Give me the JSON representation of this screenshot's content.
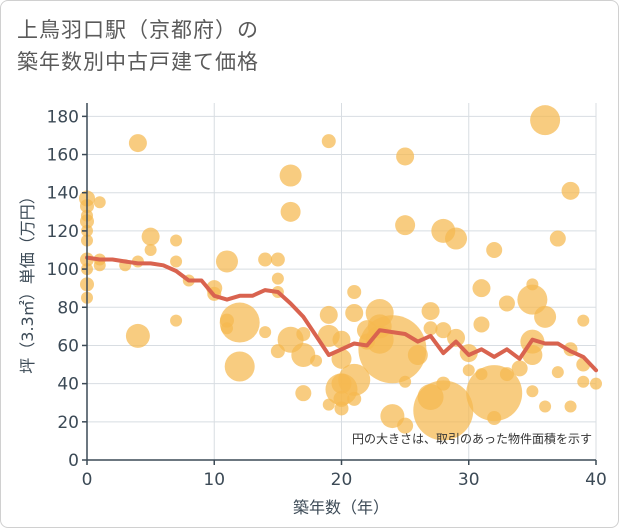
{
  "title": "上鳥羽口駅（京都府）の\n築年数別中古戸建て価格",
  "chart_data": {
    "type": "scatter",
    "xlabel": "築年数（年）",
    "ylabel": "坪（3.3㎡）単価（万円）",
    "xlim": [
      0,
      40
    ],
    "ylim": [
      0,
      187
    ],
    "x_ticks": [
      0,
      10,
      20,
      30,
      40
    ],
    "y_ticks": [
      0,
      20,
      40,
      60,
      80,
      100,
      120,
      140,
      160,
      180
    ],
    "grid": true,
    "annotation": "円の大きさは、取引のあった物件面積を示す",
    "bubble_color": "#f5b94f",
    "line_color": "#d9634f",
    "points": [
      {
        "x": 0,
        "y": 137,
        "s": 8
      },
      {
        "x": 0,
        "y": 133,
        "s": 7
      },
      {
        "x": 0,
        "y": 128,
        "s": 6
      },
      {
        "x": 0,
        "y": 125,
        "s": 7
      },
      {
        "x": 0,
        "y": 120,
        "s": 6
      },
      {
        "x": 0,
        "y": 115,
        "s": 6
      },
      {
        "x": 0,
        "y": 105,
        "s": 7
      },
      {
        "x": 0,
        "y": 100,
        "s": 6
      },
      {
        "x": 0,
        "y": 92,
        "s": 7
      },
      {
        "x": 0,
        "y": 85,
        "s": 6
      },
      {
        "x": 1,
        "y": 135,
        "s": 6
      },
      {
        "x": 1,
        "y": 105,
        "s": 6
      },
      {
        "x": 1,
        "y": 102,
        "s": 6
      },
      {
        "x": 3,
        "y": 102,
        "s": 6
      },
      {
        "x": 4,
        "y": 166,
        "s": 9
      },
      {
        "x": 4,
        "y": 104,
        "s": 6
      },
      {
        "x": 4,
        "y": 65,
        "s": 12
      },
      {
        "x": 5,
        "y": 117,
        "s": 9
      },
      {
        "x": 5,
        "y": 110,
        "s": 6
      },
      {
        "x": 7,
        "y": 115,
        "s": 6
      },
      {
        "x": 7,
        "y": 104,
        "s": 6
      },
      {
        "x": 7,
        "y": 73,
        "s": 6
      },
      {
        "x": 8,
        "y": 94,
        "s": 6
      },
      {
        "x": 10,
        "y": 90,
        "s": 8
      },
      {
        "x": 10,
        "y": 87,
        "s": 7
      },
      {
        "x": 11,
        "y": 104,
        "s": 11
      },
      {
        "x": 11,
        "y": 73,
        "s": 7
      },
      {
        "x": 11,
        "y": 69,
        "s": 6
      },
      {
        "x": 12,
        "y": 72,
        "s": 20
      },
      {
        "x": 12,
        "y": 49,
        "s": 15
      },
      {
        "x": 14,
        "y": 105,
        "s": 7
      },
      {
        "x": 14,
        "y": 67,
        "s": 6
      },
      {
        "x": 15,
        "y": 105,
        "s": 7
      },
      {
        "x": 15,
        "y": 95,
        "s": 6
      },
      {
        "x": 15,
        "y": 88,
        "s": 6
      },
      {
        "x": 15,
        "y": 57,
        "s": 7
      },
      {
        "x": 16,
        "y": 149,
        "s": 11
      },
      {
        "x": 16,
        "y": 130,
        "s": 10
      },
      {
        "x": 16,
        "y": 63,
        "s": 13
      },
      {
        "x": 17,
        "y": 66,
        "s": 7
      },
      {
        "x": 17,
        "y": 55,
        "s": 12
      },
      {
        "x": 17,
        "y": 35,
        "s": 8
      },
      {
        "x": 18,
        "y": 52,
        "s": 6
      },
      {
        "x": 19,
        "y": 167,
        "s": 7
      },
      {
        "x": 19,
        "y": 76,
        "s": 9
      },
      {
        "x": 19,
        "y": 65,
        "s": 11
      },
      {
        "x": 19,
        "y": 29,
        "s": 6
      },
      {
        "x": 20,
        "y": 63,
        "s": 9
      },
      {
        "x": 20,
        "y": 53,
        "s": 10
      },
      {
        "x": 20,
        "y": 40,
        "s": 10
      },
      {
        "x": 20,
        "y": 37,
        "s": 16
      },
      {
        "x": 20,
        "y": 32,
        "s": 8
      },
      {
        "x": 20,
        "y": 27,
        "s": 7
      },
      {
        "x": 21,
        "y": 88,
        "s": 7
      },
      {
        "x": 21,
        "y": 77,
        "s": 9
      },
      {
        "x": 21,
        "y": 42,
        "s": 16
      },
      {
        "x": 21,
        "y": 32,
        "s": 7
      },
      {
        "x": 22,
        "y": 68,
        "s": 10
      },
      {
        "x": 22,
        "y": 62,
        "s": 8
      },
      {
        "x": 23,
        "y": 77,
        "s": 14
      },
      {
        "x": 23,
        "y": 70,
        "s": 12
      },
      {
        "x": 23,
        "y": 63,
        "s": 14
      },
      {
        "x": 24,
        "y": 58,
        "s": 34
      },
      {
        "x": 24,
        "y": 23,
        "s": 12
      },
      {
        "x": 25,
        "y": 159,
        "s": 9
      },
      {
        "x": 25,
        "y": 123,
        "s": 10
      },
      {
        "x": 25,
        "y": 41,
        "s": 6
      },
      {
        "x": 25,
        "y": 18,
        "s": 8
      },
      {
        "x": 26,
        "y": 55,
        "s": 10
      },
      {
        "x": 27,
        "y": 78,
        "s": 9
      },
      {
        "x": 27,
        "y": 69,
        "s": 7
      },
      {
        "x": 27,
        "y": 33,
        "s": 13
      },
      {
        "x": 28,
        "y": 120,
        "s": 12
      },
      {
        "x": 28,
        "y": 68,
        "s": 8
      },
      {
        "x": 28,
        "y": 40,
        "s": 7
      },
      {
        "x": 28,
        "y": 26,
        "s": 30
      },
      {
        "x": 29,
        "y": 116,
        "s": 11
      },
      {
        "x": 29,
        "y": 64,
        "s": 9
      },
      {
        "x": 30,
        "y": 56,
        "s": 9
      },
      {
        "x": 30,
        "y": 47,
        "s": 6
      },
      {
        "x": 31,
        "y": 90,
        "s": 9
      },
      {
        "x": 31,
        "y": 71,
        "s": 8
      },
      {
        "x": 31,
        "y": 45,
        "s": 6
      },
      {
        "x": 32,
        "y": 110,
        "s": 8
      },
      {
        "x": 32,
        "y": 35,
        "s": 28
      },
      {
        "x": 32,
        "y": 22,
        "s": 7
      },
      {
        "x": 33,
        "y": 82,
        "s": 8
      },
      {
        "x": 33,
        "y": 45,
        "s": 7
      },
      {
        "x": 34,
        "y": 48,
        "s": 8
      },
      {
        "x": 35,
        "y": 92,
        "s": 6
      },
      {
        "x": 35,
        "y": 84,
        "s": 15
      },
      {
        "x": 35,
        "y": 62,
        "s": 12
      },
      {
        "x": 35,
        "y": 55,
        "s": 10
      },
      {
        "x": 35,
        "y": 36,
        "s": 6
      },
      {
        "x": 36,
        "y": 178,
        "s": 15
      },
      {
        "x": 36,
        "y": 75,
        "s": 11
      },
      {
        "x": 36,
        "y": 28,
        "s": 6
      },
      {
        "x": 37,
        "y": 116,
        "s": 8
      },
      {
        "x": 37,
        "y": 46,
        "s": 6
      },
      {
        "x": 38,
        "y": 141,
        "s": 9
      },
      {
        "x": 38,
        "y": 58,
        "s": 7
      },
      {
        "x": 38,
        "y": 28,
        "s": 6
      },
      {
        "x": 39,
        "y": 73,
        "s": 6
      },
      {
        "x": 39,
        "y": 50,
        "s": 7
      },
      {
        "x": 39,
        "y": 41,
        "s": 6
      },
      {
        "x": 40,
        "y": 40,
        "s": 6
      }
    ],
    "trend": [
      {
        "x": 0,
        "y": 106
      },
      {
        "x": 1,
        "y": 105
      },
      {
        "x": 2,
        "y": 105
      },
      {
        "x": 3,
        "y": 104
      },
      {
        "x": 4,
        "y": 103
      },
      {
        "x": 5,
        "y": 103
      },
      {
        "x": 6,
        "y": 102
      },
      {
        "x": 7,
        "y": 99
      },
      {
        "x": 8,
        "y": 94
      },
      {
        "x": 9,
        "y": 94
      },
      {
        "x": 10,
        "y": 86
      },
      {
        "x": 11,
        "y": 84
      },
      {
        "x": 12,
        "y": 86
      },
      {
        "x": 13,
        "y": 86
      },
      {
        "x": 14,
        "y": 89
      },
      {
        "x": 15,
        "y": 88
      },
      {
        "x": 16,
        "y": 82
      },
      {
        "x": 17,
        "y": 75
      },
      {
        "x": 18,
        "y": 65
      },
      {
        "x": 19,
        "y": 55
      },
      {
        "x": 20,
        "y": 58
      },
      {
        "x": 21,
        "y": 61
      },
      {
        "x": 22,
        "y": 60
      },
      {
        "x": 23,
        "y": 68
      },
      {
        "x": 24,
        "y": 67
      },
      {
        "x": 25,
        "y": 66
      },
      {
        "x": 26,
        "y": 62
      },
      {
        "x": 27,
        "y": 65
      },
      {
        "x": 28,
        "y": 56
      },
      {
        "x": 29,
        "y": 62
      },
      {
        "x": 30,
        "y": 55
      },
      {
        "x": 31,
        "y": 58
      },
      {
        "x": 32,
        "y": 54
      },
      {
        "x": 33,
        "y": 58
      },
      {
        "x": 34,
        "y": 53
      },
      {
        "x": 35,
        "y": 63
      },
      {
        "x": 36,
        "y": 61
      },
      {
        "x": 37,
        "y": 61
      },
      {
        "x": 38,
        "y": 57
      },
      {
        "x": 39,
        "y": 54
      },
      {
        "x": 40,
        "y": 47
      }
    ]
  }
}
